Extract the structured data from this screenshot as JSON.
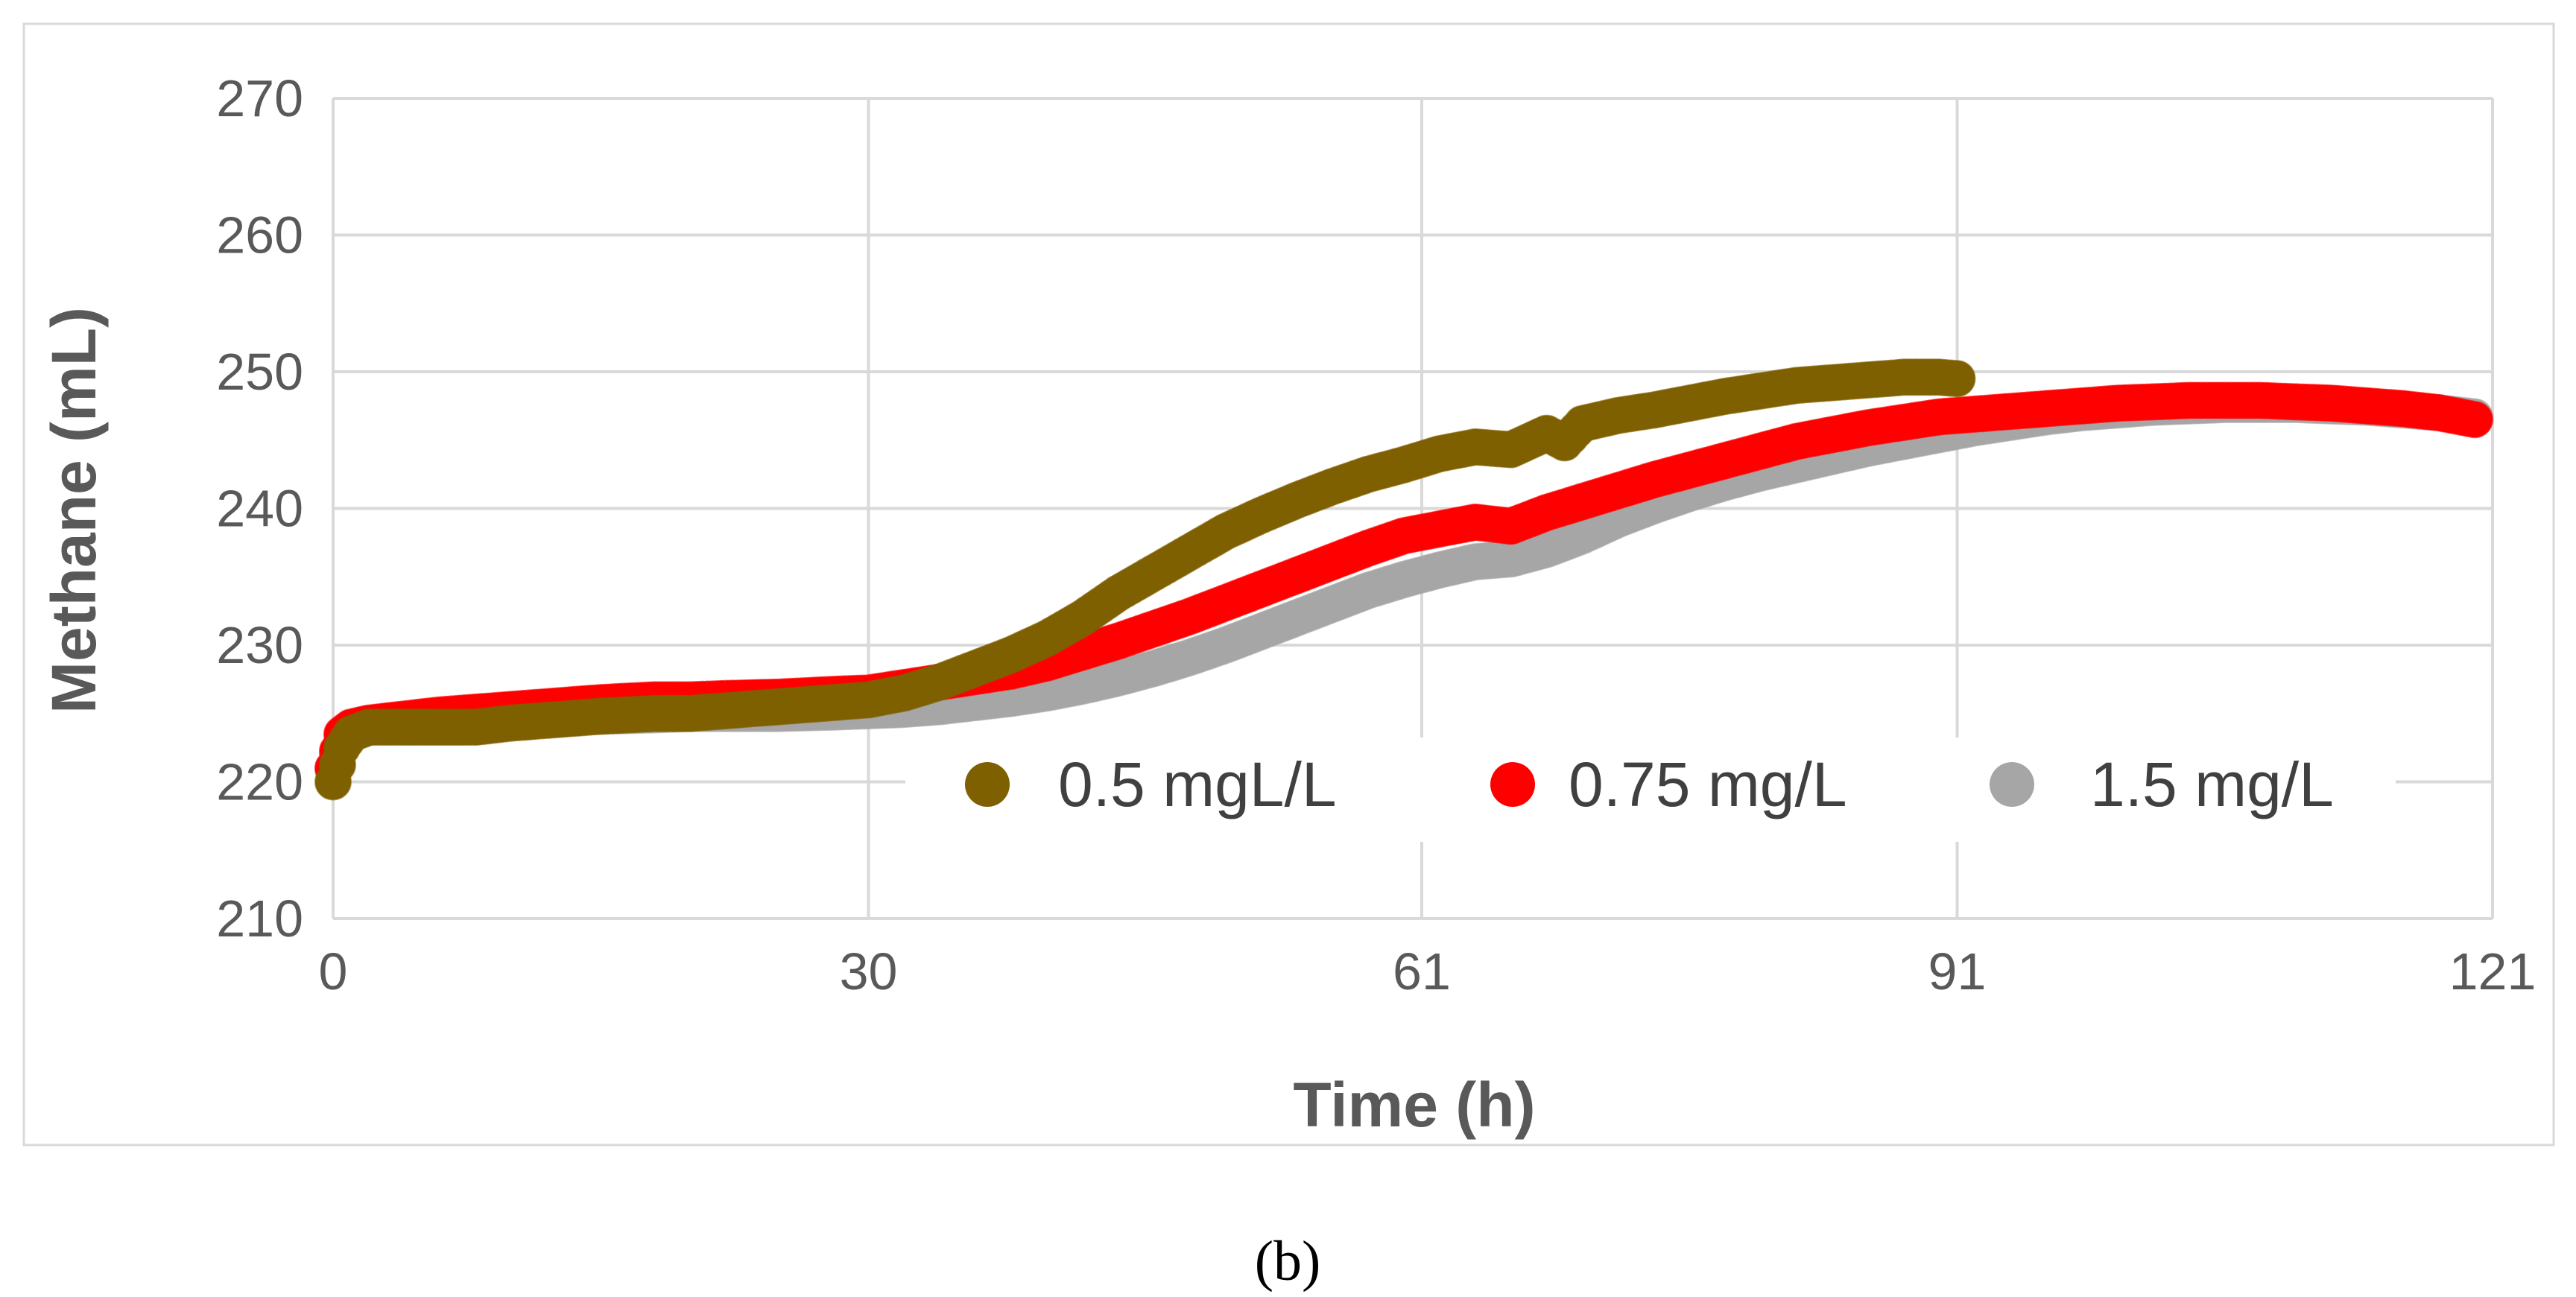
{
  "chart_data": {
    "type": "scatter",
    "title": "",
    "xlabel": "Time (h)",
    "ylabel": "Methane (mL)",
    "xlim": [
      0,
      121
    ],
    "ylim": [
      210,
      270
    ],
    "xticks": [
      0,
      30,
      61,
      91,
      121
    ],
    "xtick_labels": [
      "0",
      "30",
      "61",
      "91",
      "121"
    ],
    "yticks": [
      210,
      220,
      230,
      240,
      250,
      260,
      270
    ],
    "ytick_labels": [
      "210",
      "220",
      "230",
      "240",
      "250",
      "260",
      "270"
    ],
    "grid": true,
    "legend_position": "lower-right inside plot",
    "series": [
      {
        "name": "0.5 mgL/L",
        "color": "#7F6000",
        "x": [
          0,
          0.5,
          1,
          2,
          4,
          6,
          8,
          10,
          12,
          15,
          18,
          20,
          22,
          25,
          28,
          30,
          32,
          34,
          36,
          38,
          40,
          42,
          44,
          46,
          48,
          50,
          52,
          54,
          56,
          58,
          60,
          62,
          64,
          66,
          68,
          69,
          70,
          72,
          74,
          76,
          78,
          80,
          82,
          84,
          86,
          88,
          90,
          91
        ],
        "y": [
          220,
          222.5,
          223.5,
          224,
          224,
          224,
          224,
          224.3,
          224.5,
          224.8,
          225,
          225,
          225.2,
          225.5,
          225.8,
          226,
          226.5,
          227.3,
          228.3,
          229.3,
          230.5,
          232,
          233.8,
          235.3,
          236.8,
          238.3,
          239.5,
          240.6,
          241.6,
          242.5,
          243.2,
          244,
          244.5,
          244.3,
          245.5,
          244.8,
          246.2,
          246.8,
          247.2,
          247.7,
          248.2,
          248.6,
          249,
          249.2,
          249.4,
          249.6,
          249.6,
          249.5
        ]
      },
      {
        "name": "0.75 mg/L",
        "color": "#FF0000",
        "x": [
          0,
          0.5,
          1,
          2,
          4,
          6,
          8,
          10,
          12,
          15,
          18,
          20,
          22,
          25,
          28,
          30,
          32,
          34,
          36,
          38,
          40,
          42,
          44,
          46,
          48,
          50,
          52,
          54,
          56,
          58,
          60,
          62,
          64,
          66,
          68,
          70,
          72,
          74,
          76,
          78,
          80,
          82,
          84,
          86,
          88,
          90,
          92,
          94,
          96,
          98,
          100,
          102,
          104,
          106,
          108,
          110,
          112,
          114,
          116,
          118,
          120
        ],
        "y": [
          221,
          223.5,
          224,
          224.3,
          224.6,
          224.9,
          225.1,
          225.3,
          225.5,
          225.8,
          226,
          226,
          226.1,
          226.2,
          226.4,
          226.5,
          226.9,
          227.3,
          227.7,
          228.1,
          228.7,
          229.5,
          230.3,
          231.2,
          232.1,
          233.1,
          234.1,
          235.1,
          236.1,
          237.1,
          238,
          238.5,
          239,
          238.7,
          239.7,
          240.5,
          241.3,
          242.1,
          242.8,
          243.5,
          244.2,
          244.9,
          245.4,
          245.9,
          246.3,
          246.7,
          246.9,
          247.1,
          247.3,
          247.5,
          247.7,
          247.8,
          247.9,
          247.9,
          247.9,
          247.8,
          247.7,
          247.5,
          247.3,
          247,
          246.5
        ]
      },
      {
        "name": "1.5 mg/L",
        "color": "#A6A6A6",
        "x": [
          0,
          0.5,
          1,
          2,
          4,
          6,
          8,
          10,
          12,
          15,
          18,
          20,
          22,
          25,
          28,
          30,
          32,
          34,
          36,
          38,
          40,
          42,
          44,
          46,
          48,
          50,
          52,
          54,
          56,
          58,
          60,
          62,
          64,
          66,
          68,
          70,
          72,
          74,
          76,
          78,
          80,
          82,
          84,
          86,
          88,
          90,
          92,
          94,
          96,
          98,
          100,
          102,
          104,
          106,
          108,
          110,
          112,
          114,
          116,
          118,
          120
        ],
        "y": [
          221,
          223,
          223.6,
          224,
          224.2,
          224.4,
          224.5,
          224.6,
          224.7,
          224.8,
          224.9,
          225,
          225,
          225,
          225.1,
          225.2,
          225.3,
          225.5,
          225.8,
          226.1,
          226.5,
          227,
          227.6,
          228.3,
          229.1,
          230,
          231,
          232,
          233,
          234,
          234.8,
          235.5,
          236.1,
          236.3,
          237,
          238,
          239.2,
          240.2,
          241.1,
          241.9,
          242.6,
          243.2,
          243.8,
          244.4,
          244.9,
          245.4,
          245.9,
          246.3,
          246.7,
          247,
          247.2,
          247.4,
          247.5,
          247.6,
          247.6,
          247.6,
          247.5,
          247.4,
          247.2,
          247,
          246.7
        ]
      }
    ]
  },
  "caption": "(b)"
}
